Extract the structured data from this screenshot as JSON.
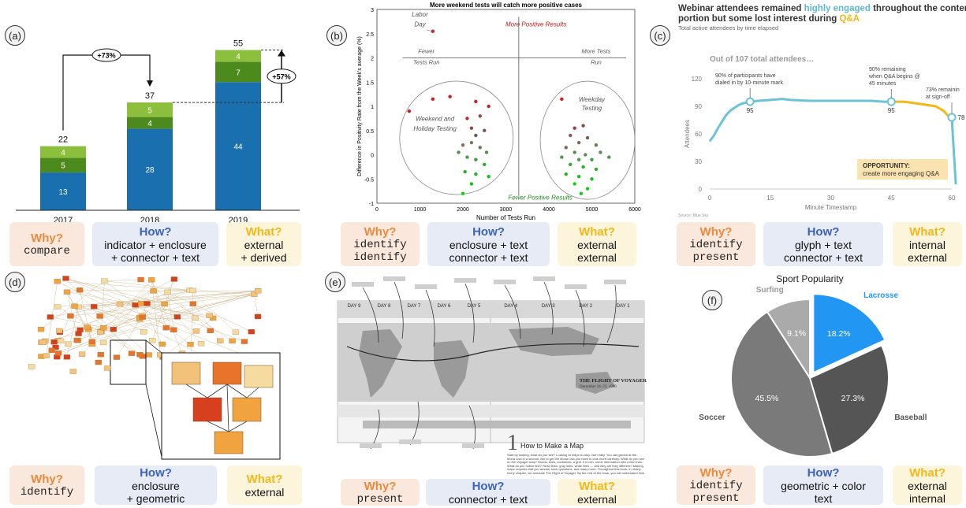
{
  "panels": {
    "a": {
      "label": "(a)",
      "why": {
        "title": "Why?",
        "text": "compare"
      },
      "how": {
        "title": "How?",
        "text": "indicator + enclosure\n+ connector + text"
      },
      "what": {
        "title": "What?",
        "text": "external\n+ derived"
      }
    },
    "b": {
      "label": "(b)",
      "why": {
        "title": "Why?",
        "text": "identify\nidentify"
      },
      "how": {
        "title": "How?",
        "text": "enclosure + text\nconnector + text"
      },
      "what": {
        "title": "What?",
        "text": "external\nexternal"
      }
    },
    "c": {
      "label": "(c)",
      "why": {
        "title": "Why?",
        "text": "identify\npresent"
      },
      "how": {
        "title": "How?",
        "text": "glyph + text\nconnector + text"
      },
      "what": {
        "title": "What?",
        "text": "internal\nexternal"
      }
    },
    "d": {
      "label": "(d)",
      "why": {
        "title": "Why?",
        "text": "identify"
      },
      "how": {
        "title": "How?",
        "text": "enclosure\n+ geometric"
      },
      "what": {
        "title": "What?",
        "text": "external"
      }
    },
    "e": {
      "label": "(e)",
      "why": {
        "title": "Why?",
        "text": "present"
      },
      "how": {
        "title": "How?",
        "text": "connector + text"
      },
      "what": {
        "title": "What?",
        "text": "external"
      }
    },
    "f": {
      "label": "(f)",
      "why": {
        "title": "Why?",
        "text": "identify\npresent"
      },
      "how": {
        "title": "How?",
        "text": "geometric + color\ntext"
      },
      "what": {
        "title": "What?",
        "text": "external\ninternal"
      }
    }
  },
  "chart_data": [
    {
      "type": "bar",
      "panel": "a",
      "categories": [
        "2017",
        "2018",
        "2019"
      ],
      "series": [
        {
          "name": "",
          "values": [
            13,
            28,
            44
          ],
          "color": "#1a6fae"
        },
        {
          "name": "",
          "values": [
            5,
            4,
            7
          ],
          "color": "#4d8a1e"
        },
        {
          "name": "",
          "values": [
            4,
            5,
            4
          ],
          "color": "#8cc03c"
        }
      ],
      "totals": [
        22,
        37,
        55
      ],
      "annotations": [
        "+73%",
        "+57%"
      ],
      "ylim": [
        0,
        55
      ]
    },
    {
      "type": "scatter",
      "panel": "b",
      "title": "More weekend tests will catch more positive cases",
      "xlabel": "Number of Tests Run",
      "ylabel": "Difference in Positivity Rate from the Week's average (%)",
      "xlim": [
        0,
        6000
      ],
      "ylim": [
        -1,
        3
      ],
      "xticks": [
        "0",
        "1000",
        "2000",
        "3000",
        "4000",
        "5000",
        "6000"
      ],
      "yticks": [
        "3",
        "2.5",
        "2",
        "1.5",
        "1",
        "0.5",
        "0",
        "-0.5",
        "-1"
      ],
      "annotations": [
        "Labor Day",
        "More Positive Results",
        "Fewer Tests Run",
        "More Tests Run",
        "Weekend and Holiday Testing",
        "Weekday Testing",
        "Fewer Positive Results"
      ],
      "points": [
        {
          "x": 1300,
          "y": 2.55,
          "c": "#cc1f1f"
        },
        {
          "x": 750,
          "y": 0.9,
          "c": "#cc1f1f"
        },
        {
          "x": 1300,
          "y": 1.15,
          "c": "#cc1f1f"
        },
        {
          "x": 1700,
          "y": 1.2,
          "c": "#cc1f1f"
        },
        {
          "x": 2300,
          "y": 1.1,
          "c": "#cc1f1f"
        },
        {
          "x": 2600,
          "y": 1.0,
          "c": "#cc1f1f"
        },
        {
          "x": 2100,
          "y": 0.75,
          "c": "#b03030"
        },
        {
          "x": 2400,
          "y": 0.8,
          "c": "#a04040"
        },
        {
          "x": 2200,
          "y": 0.55,
          "c": "#8a4a4a"
        },
        {
          "x": 2500,
          "y": 0.5,
          "c": "#7a5050"
        },
        {
          "x": 2300,
          "y": 0.4,
          "c": "#6a5a5a"
        },
        {
          "x": 2000,
          "y": 0.2,
          "c": "#8a6a5a"
        },
        {
          "x": 2200,
          "y": 0.25,
          "c": "#7a7a5a"
        },
        {
          "x": 2400,
          "y": 0.15,
          "c": "#6a7a5a"
        },
        {
          "x": 2550,
          "y": 0.05,
          "c": "#5a8a5a"
        },
        {
          "x": 1900,
          "y": 0.05,
          "c": "#5a8a5a"
        },
        {
          "x": 2100,
          "y": -0.05,
          "c": "#4a9a4a"
        },
        {
          "x": 2300,
          "y": -0.1,
          "c": "#3aa03a"
        },
        {
          "x": 2500,
          "y": -0.2,
          "c": "#2ab02a"
        },
        {
          "x": 2050,
          "y": -0.35,
          "c": "#2ab02a"
        },
        {
          "x": 2300,
          "y": -0.4,
          "c": "#1ac01a"
        },
        {
          "x": 2600,
          "y": -0.45,
          "c": "#1ac01a"
        },
        {
          "x": 2200,
          "y": -0.6,
          "c": "#1ac01a"
        },
        {
          "x": 2000,
          "y": -0.8,
          "c": "#10d010"
        },
        {
          "x": 4300,
          "y": 1.15,
          "c": "#cc1f1f"
        },
        {
          "x": 4600,
          "y": 0.55,
          "c": "#a04040"
        },
        {
          "x": 4800,
          "y": 0.6,
          "c": "#8a4a4a"
        },
        {
          "x": 4500,
          "y": 0.4,
          "c": "#8a5a5a"
        },
        {
          "x": 4900,
          "y": 0.35,
          "c": "#7a5a5a"
        },
        {
          "x": 4700,
          "y": 0.25,
          "c": "#7a6a5a"
        },
        {
          "x": 5100,
          "y": 0.2,
          "c": "#6a7a5a"
        },
        {
          "x": 4400,
          "y": 0.15,
          "c": "#7a6a5a"
        },
        {
          "x": 4600,
          "y": 0.05,
          "c": "#5a8a5a"
        },
        {
          "x": 4850,
          "y": 0.0,
          "c": "#5a8a5a"
        },
        {
          "x": 5200,
          "y": 0.05,
          "c": "#5a8a5a"
        },
        {
          "x": 4300,
          "y": -0.05,
          "c": "#4a9a4a"
        },
        {
          "x": 4700,
          "y": -0.1,
          "c": "#4a9a4a"
        },
        {
          "x": 5000,
          "y": -0.1,
          "c": "#3aa03a"
        },
        {
          "x": 5400,
          "y": -0.05,
          "c": "#4a9a4a"
        },
        {
          "x": 4500,
          "y": -0.2,
          "c": "#2ab02a"
        },
        {
          "x": 4800,
          "y": -0.25,
          "c": "#2ab02a"
        },
        {
          "x": 5100,
          "y": -0.3,
          "c": "#2ab02a"
        },
        {
          "x": 4400,
          "y": -0.4,
          "c": "#1ac01a"
        },
        {
          "x": 4700,
          "y": -0.45,
          "c": "#1ac01a"
        },
        {
          "x": 5000,
          "y": -0.5,
          "c": "#1ac01a"
        },
        {
          "x": 4600,
          "y": -0.6,
          "c": "#10d010"
        },
        {
          "x": 4900,
          "y": -0.7,
          "c": "#10d010"
        },
        {
          "x": 4750,
          "y": -0.8,
          "c": "#10d010"
        }
      ]
    },
    {
      "type": "line",
      "panel": "c",
      "title_parts": [
        "Webinar attendees remained ",
        "highly engaged",
        " throughout the content portion but some lost interest during ",
        "Q&A"
      ],
      "subtitle": "Total active attendees by time elapsed",
      "headline": "Out of 107 total attendees…",
      "xlabel": "Minute Timestamp",
      "ylabel": "Attendees",
      "xlim": [
        0,
        60
      ],
      "ylim": [
        0,
        120
      ],
      "xticks": [
        0,
        15,
        30,
        45,
        60
      ],
      "yticks": [
        0,
        30,
        60,
        90,
        120
      ],
      "x": [
        0,
        1,
        2,
        3,
        4,
        5,
        6,
        7,
        8,
        9,
        10,
        12,
        15,
        18,
        20,
        25,
        30,
        35,
        40,
        43,
        45,
        48,
        50,
        53,
        56,
        58,
        59,
        60,
        60.5,
        61
      ],
      "y": [
        52,
        58,
        66,
        73,
        80,
        85,
        88,
        91,
        93,
        94,
        95,
        96,
        97,
        98,
        97,
        96,
        96,
        96,
        96,
        95,
        95,
        95,
        94,
        92,
        90,
        85,
        80,
        78,
        40,
        5
      ],
      "highlights": [
        {
          "x": 10,
          "y": 95,
          "label": "95",
          "note": "90% of participants have dialed in by 10-minute mark"
        },
        {
          "x": 45,
          "y": 95,
          "label": "95",
          "note": "90% remaining when Q&A begins @ 45 minutes"
        },
        {
          "x": 60,
          "y": 78,
          "label": "78",
          "note": "73% remaining at sign-off"
        }
      ],
      "callout_title": "OPPORTUNITY:",
      "callout_text": "create more engaging Q&A",
      "source": "Source: Blue Sky"
    },
    {
      "type": "pie",
      "panel": "f",
      "title": "Sport Popularity",
      "labels": [
        "Lacrosse",
        "Baseball",
        "Soccer",
        "Surfing"
      ],
      "values": [
        18.2,
        27.3,
        45.5,
        9.1
      ],
      "pct_labels": [
        "18.2%",
        "27.3%",
        "45.5%",
        "9.1%"
      ],
      "colors": [
        "#2196f3",
        "#555555",
        "#7a7a7a",
        "#aaaaaa"
      ]
    }
  ],
  "panel_e": {
    "day_labels_left": [
      "DAY 9",
      "DAY 8",
      "DAY 7",
      "DAY 6",
      "DAY 5"
    ],
    "day_labels_right": [
      "DAY 4",
      "DAY 3",
      "DAY 2",
      "DAY 1"
    ],
    "map_title": "THE FLIGHT OF VOYAGER",
    "map_subtitle": "December 14–23, 1986",
    "chapter_number": "1",
    "chapter_title": "How to Make a Map",
    "chapter_text": "Start by looking: what do you see? Looking at maps is easy. Not really. You can glance at the Mona Lisa in a second. But to get the Mona Lisa you have to look more carefully. What do you see on the Voyager map? Words, lines, continents, a grid. It is rich, some information with a few lines. What do you notice first? Read lines, gray lines, white lines — and why are they different? Making maps requires that you answer such questions, and many more. Throughout this book, in nearly every chapter, we annotate The Flight of Voyager. By the end of the book, you will understand how to really see — and make — a map."
  }
}
